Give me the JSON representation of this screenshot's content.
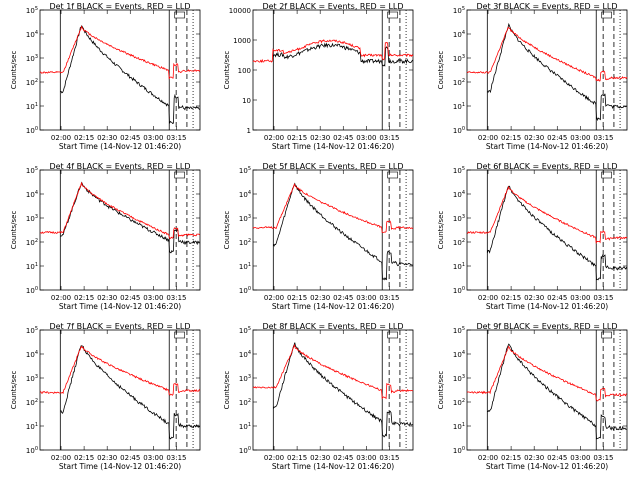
{
  "colors": {
    "events": "#000000",
    "lld": "#ff0000",
    "background": "#ffffff"
  },
  "start_time_label": "Start Time (14-Nov-12 01:46:20)",
  "x_ticks": [
    "02:00",
    "02:15",
    "02:30",
    "02:45",
    "03:00",
    "03:15"
  ],
  "ylabel": "Counts/sec",
  "chart_data": [
    {
      "type": "line",
      "title": "Det 1f BLACK = Events, RED = LLD",
      "ylabel": "Counts/sec",
      "ylog": true,
      "yticks": [
        "10^0",
        "10^1",
        "10^2",
        "10^3",
        "10^4",
        "10^5"
      ],
      "ylim": [
        1,
        100000
      ],
      "series": [
        {
          "name": "Events",
          "shape": "events",
          "peak": 25000,
          "base": 40,
          "floor": 10,
          "dip": 2
        },
        {
          "name": "LLD",
          "shape": "lld",
          "peak": 20000,
          "base": 250,
          "floor": 300,
          "dip": 150
        }
      ]
    },
    {
      "type": "line",
      "title": "Det 2f BLACK = Events, RED = LLD",
      "ylabel": "Counts/sec",
      "ylog": true,
      "yticks": [
        "1",
        "10",
        "100",
        "1000",
        "10000"
      ],
      "ylim": [
        1,
        15000
      ],
      "series": [
        {
          "name": "Events",
          "shape": "flat_events",
          "peak": 900,
          "base": 300,
          "floor": 250,
          "dip": 200
        },
        {
          "name": "LLD",
          "shape": "flat_lld",
          "peak": 1300,
          "base": 420,
          "floor": 400,
          "dip": 300
        }
      ]
    },
    {
      "type": "line",
      "title": "Det 3f BLACK = Events, RED = LLD",
      "ylabel": "Counts/sec",
      "ylog": true,
      "yticks": [
        "10^0",
        "10^1",
        "10^2",
        "10^3",
        "10^4",
        "10^5"
      ],
      "ylim": [
        1,
        100000
      ],
      "series": [
        {
          "name": "Events",
          "shape": "events",
          "peak": 25000,
          "base": 40,
          "floor": 12,
          "dip": 3
        },
        {
          "name": "LLD",
          "shape": "lld",
          "peak": 20000,
          "base": 250,
          "floor": 150,
          "dip": 120
        }
      ]
    },
    {
      "type": "line",
      "title": "Det 4f BLACK = Events, RED = LLD",
      "ylabel": "Counts/sec",
      "ylog": true,
      "yticks": [
        "10^0",
        "10^1",
        "10^2",
        "10^3",
        "10^4",
        "10^5"
      ],
      "ylim": [
        1,
        100000
      ],
      "series": [
        {
          "name": "Events",
          "shape": "events",
          "peak": 30000,
          "base": 200,
          "floor": 120,
          "dip": 40
        },
        {
          "name": "LLD",
          "shape": "lld",
          "peak": 28000,
          "base": 250,
          "floor": 200,
          "dip": 150
        }
      ]
    },
    {
      "type": "line",
      "title": "Det 5f BLACK = Events, RED = LLD",
      "ylabel": "Counts/sec",
      "ylog": true,
      "yticks": [
        "10^0",
        "10^1",
        "10^2",
        "10^3",
        "10^4",
        "10^5"
      ],
      "ylim": [
        1,
        100000
      ],
      "series": [
        {
          "name": "Events",
          "shape": "events",
          "peak": 30000,
          "base": 80,
          "floor": 15,
          "dip": 3
        },
        {
          "name": "LLD",
          "shape": "lld",
          "peak": 25000,
          "base": 400,
          "floor": 400,
          "dip": 250
        }
      ]
    },
    {
      "type": "line",
      "title": "Det 6f BLACK = Events, RED = LLD",
      "ylabel": "Counts/sec",
      "ylog": true,
      "yticks": [
        "10^0",
        "10^1",
        "10^2",
        "10^3",
        "10^4",
        "10^5"
      ],
      "ylim": [
        1,
        100000
      ],
      "series": [
        {
          "name": "Events",
          "shape": "events",
          "peak": 25000,
          "base": 40,
          "floor": 10,
          "dip": 3
        },
        {
          "name": "LLD",
          "shape": "lld",
          "peak": 20000,
          "base": 250,
          "floor": 150,
          "dip": 100
        }
      ]
    },
    {
      "type": "line",
      "title": "Det 7f BLACK = Events, RED = LLD",
      "ylabel": "Counts/sec",
      "ylog": true,
      "yticks": [
        "10^0",
        "10^1",
        "10^2",
        "10^3",
        "10^4",
        "10^5"
      ],
      "ylim": [
        1,
        100000
      ],
      "series": [
        {
          "name": "Events",
          "shape": "events",
          "peak": 28000,
          "base": 40,
          "floor": 12,
          "dip": 3
        },
        {
          "name": "LLD",
          "shape": "lld",
          "peak": 22000,
          "base": 250,
          "floor": 300,
          "dip": 200
        }
      ]
    },
    {
      "type": "line",
      "title": "Det 8f BLACK = Events, RED = LLD",
      "ylabel": "Counts/sec",
      "ylog": true,
      "yticks": [
        "10^0",
        "10^1",
        "10^2",
        "10^3",
        "10^4",
        "10^5"
      ],
      "ylim": [
        1,
        100000
      ],
      "series": [
        {
          "name": "Events",
          "shape": "events",
          "peak": 30000,
          "base": 60,
          "floor": 15,
          "dip": 4
        },
        {
          "name": "LLD",
          "shape": "lld",
          "peak": 22000,
          "base": 400,
          "floor": 300,
          "dip": 150
        }
      ]
    },
    {
      "type": "line",
      "title": "Det 9f BLACK = Events, RED = LLD",
      "ylabel": "Counts/sec",
      "ylog": true,
      "yticks": [
        "10^0",
        "10^1",
        "10^2",
        "10^3",
        "10^4",
        "10^5"
      ],
      "ylim": [
        1,
        100000
      ],
      "series": [
        {
          "name": "Events",
          "shape": "events",
          "peak": 28000,
          "base": 40,
          "floor": 10,
          "dip": 3
        },
        {
          "name": "LLD",
          "shape": "lld",
          "peak": 20000,
          "base": 250,
          "floor": 200,
          "dip": 120
        }
      ]
    }
  ]
}
